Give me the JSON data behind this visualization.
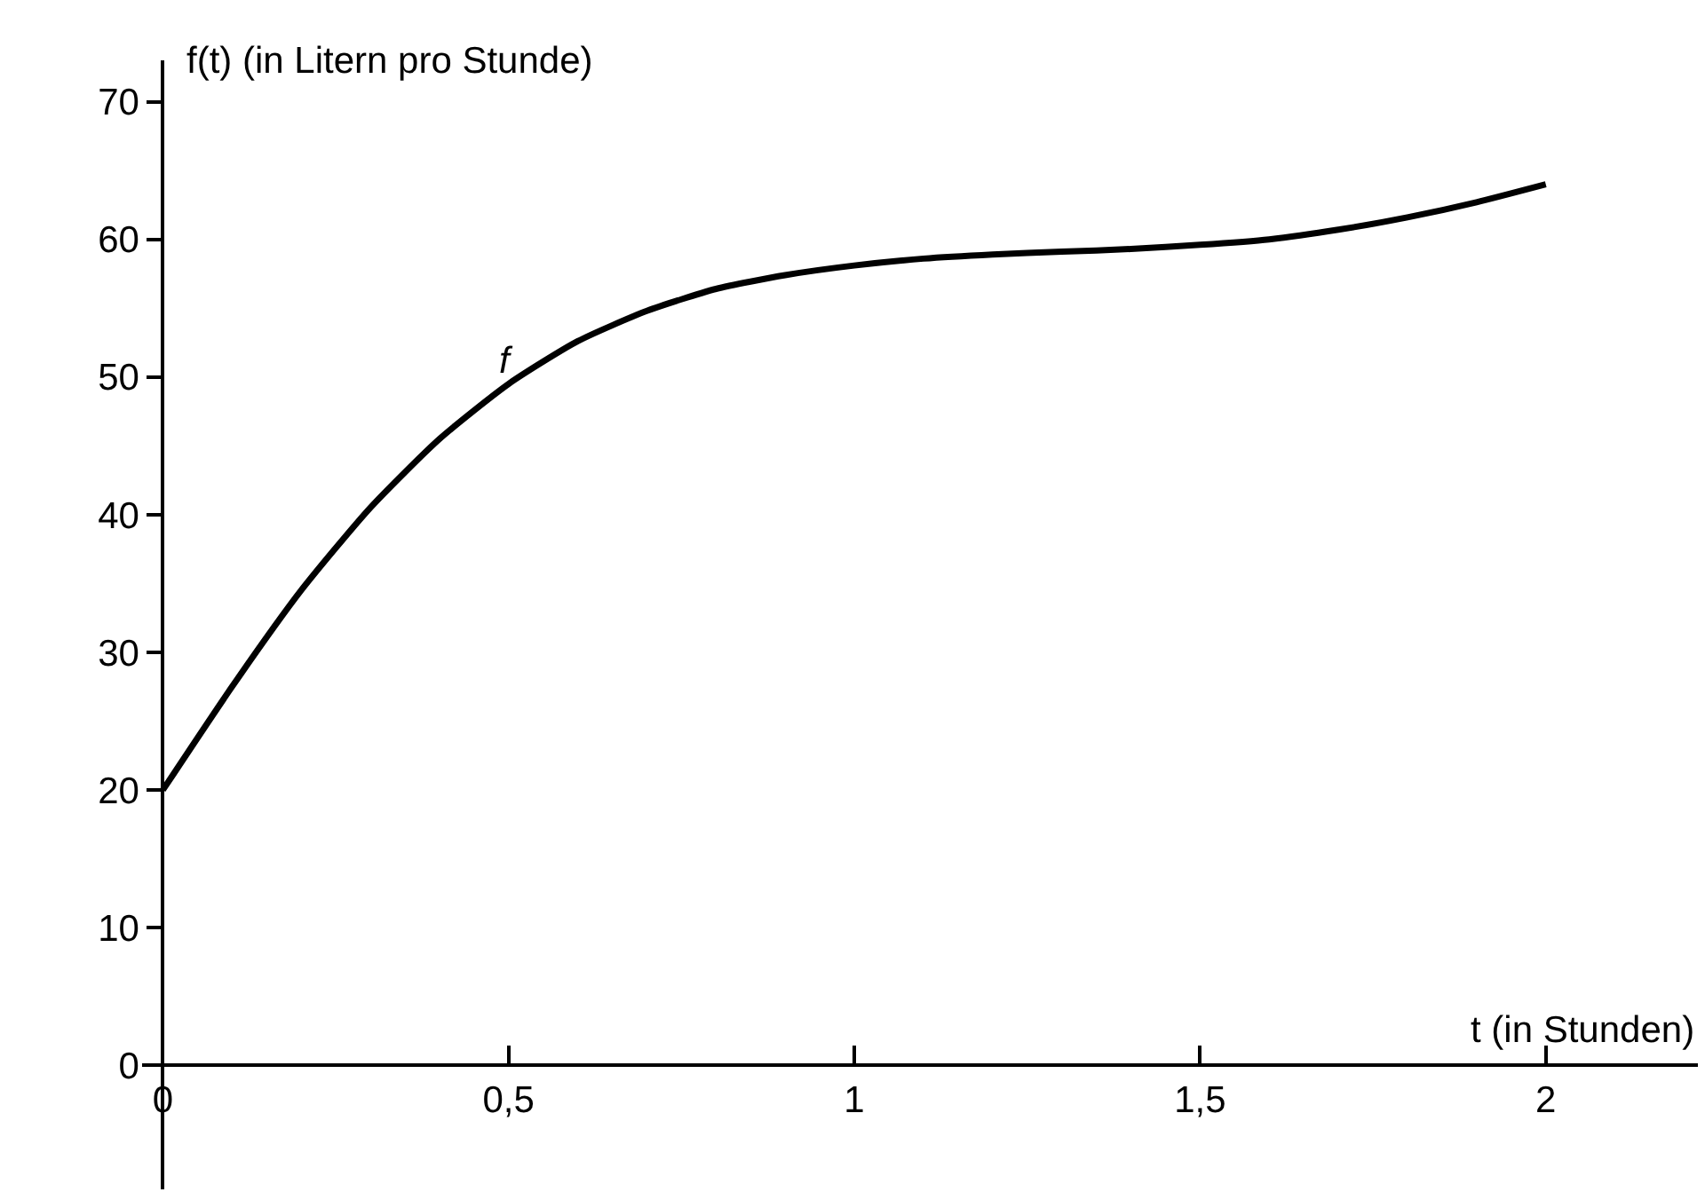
{
  "chart_data": {
    "type": "line",
    "xlabel": "t (in Stunden)",
    "ylabel": "f(t) (in Litern pro Stunde)",
    "x": [
      0,
      0.1,
      0.2,
      0.3,
      0.4,
      0.5,
      0.6,
      0.7,
      0.8,
      0.9,
      1.0,
      1.1,
      1.2,
      1.3,
      1.4,
      1.5,
      1.6,
      1.7,
      1.8,
      1.9,
      2.0
    ],
    "series": [
      {
        "color": "#000000",
        "values": [
          20,
          27.5,
          34.5,
          40.5,
          45.5,
          49.5,
          52.6,
          54.8,
          56.4,
          57.4,
          58.1,
          58.6,
          58.9,
          59.1,
          59.3,
          59.6,
          60.0,
          60.7,
          61.6,
          62.7,
          64
        ]
      }
    ],
    "xlim": [
      -0.03,
      2.22
    ],
    "ylim": [
      -9,
      73
    ],
    "xticks": [
      0,
      {
        "value": 0.5,
        "label": "0,5"
      },
      1,
      {
        "value": 1.5,
        "label": "1,5"
      },
      2
    ],
    "yticks": [
      0,
      10,
      20,
      30,
      40,
      50,
      60,
      70
    ],
    "annotations": [
      "f"
    ],
    "grid": false,
    "marker": "none",
    "line_style": "solid"
  }
}
